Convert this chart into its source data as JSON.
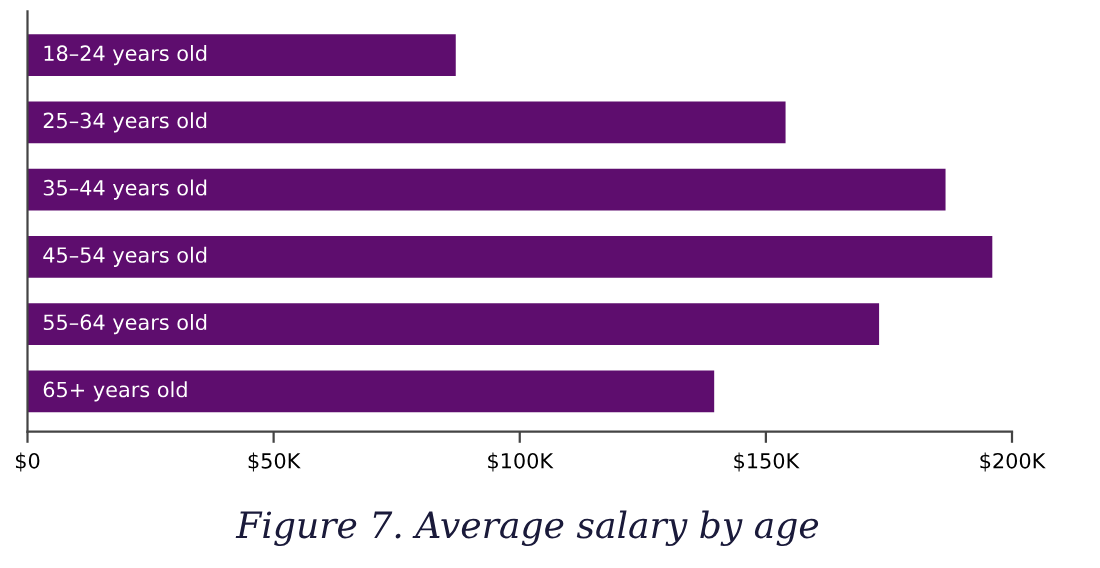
{
  "chart_data": {
    "type": "bar",
    "orientation": "horizontal",
    "title": "Figure 7. Average salary by age",
    "categories": [
      "18–24 years old",
      "25–34 years old",
      "35–44 years old",
      "45–54 years old",
      "55–64 years old",
      "65+ years old"
    ],
    "values": [
      87,
      154,
      186.5,
      196,
      173,
      139.5
    ],
    "color": "#5e0d6e",
    "xlim": [
      0,
      200
    ],
    "xticks": [
      {
        "value": 0,
        "label": "$0"
      },
      {
        "value": 50,
        "label": "$50K"
      },
      {
        "value": 100,
        "label": "$100K"
      },
      {
        "value": 150,
        "label": "$150K"
      },
      {
        "value": 200,
        "label": "$200K"
      }
    ],
    "tick_labels": "x",
    "grid": false,
    "legend": false
  }
}
